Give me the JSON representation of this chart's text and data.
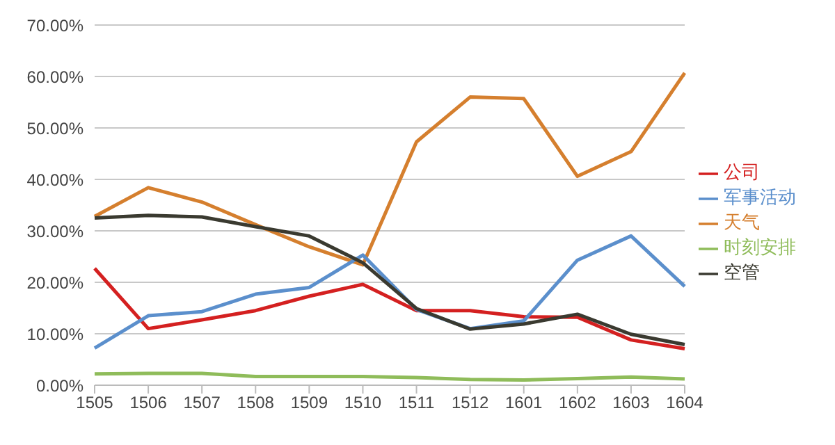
{
  "chart_data": {
    "type": "line",
    "categories": [
      "1505",
      "1506",
      "1507",
      "1508",
      "1509",
      "1510",
      "1511",
      "1512",
      "1601",
      "1602",
      "1603",
      "1604"
    ],
    "series": [
      {
        "name": "天气",
        "color": "#d57f2e",
        "values": [
          32.8,
          38.4,
          35.6,
          31.2,
          26.9,
          23.4,
          47.3,
          56.0,
          55.7,
          40.6,
          45.4,
          60.7
        ]
      },
      {
        "name": "公司",
        "color": "#d42020",
        "values": [
          22.7,
          11.0,
          12.7,
          14.5,
          17.3,
          19.6,
          14.5,
          14.5,
          13.3,
          13.2,
          8.8,
          7.1
        ]
      },
      {
        "name": "时刻安排",
        "color": "#8fbc5a",
        "values": [
          2.2,
          2.3,
          2.3,
          1.7,
          1.7,
          1.7,
          1.5,
          1.1,
          1.0,
          1.3,
          1.6,
          1.2
        ]
      },
      {
        "name": "军事活动",
        "color": "#5b8fcc",
        "values": [
          7.2,
          13.5,
          14.3,
          17.7,
          19.0,
          25.3,
          14.7,
          11.0,
          12.5,
          24.3,
          29.0,
          19.2
        ]
      },
      {
        "name": "空管",
        "color": "#3a3a30",
        "values": [
          32.5,
          33.0,
          32.7,
          30.8,
          29.0,
          23.8,
          14.9,
          10.9,
          11.9,
          13.8,
          9.9,
          7.9
        ]
      }
    ],
    "ylim": [
      0,
      70
    ],
    "yticks": [
      {
        "value": 0,
        "label": "0.00%"
      },
      {
        "value": 10,
        "label": "10.00%"
      },
      {
        "value": 20,
        "label": "20.00%"
      },
      {
        "value": 30,
        "label": "30.00%"
      },
      {
        "value": 40,
        "label": "40.00%"
      },
      {
        "value": 50,
        "label": "50.00%"
      },
      {
        "value": 60,
        "label": "60.00%"
      },
      {
        "value": 70,
        "label": "70.00%"
      }
    ],
    "grid": "y",
    "legend": "right",
    "marker": "none",
    "line_style": "solid"
  }
}
